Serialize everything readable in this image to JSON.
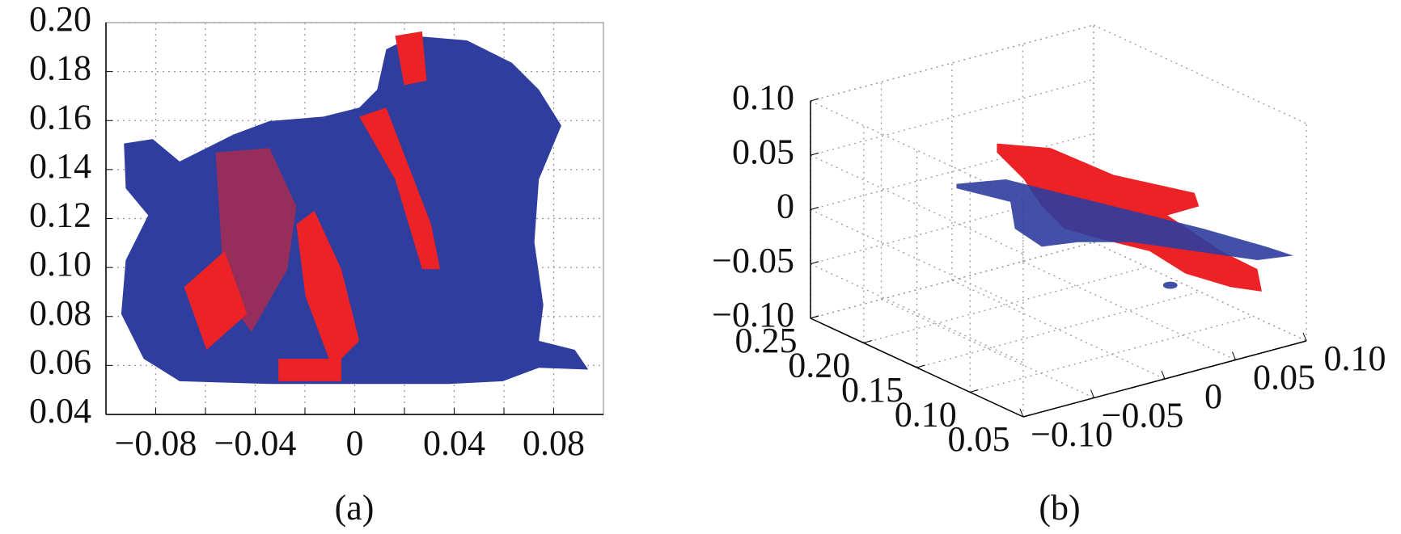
{
  "chart_data": [
    {
      "type": "scatter",
      "caption": "(a)",
      "point_colors": [
        "#2e3d9e",
        "#ec2227"
      ],
      "grid": true,
      "xlim": [
        -0.1,
        0.1
      ],
      "xticks": [
        {
          "value": -0.08,
          "label": "−0.08"
        },
        {
          "value": -0.06,
          "label": null
        },
        {
          "value": -0.04,
          "label": "−0.04"
        },
        {
          "value": -0.02,
          "label": null
        },
        0,
        {
          "value": 0.02,
          "label": null
        },
        0.04,
        {
          "value": 0.06,
          "label": null
        },
        0.08
      ],
      "ylim": [
        0.04,
        0.2
      ],
      "yticks": [
        0.04,
        0.06,
        0.08,
        {
          "value": 0.1,
          "label": "0.10"
        },
        0.12,
        0.14,
        0.16,
        0.18,
        {
          "value": 0.2,
          "label": "0.20"
        }
      ]
    },
    {
      "type": "scatter3d",
      "caption": "(b)",
      "point_colors": [
        "#2e3d9e",
        "#ec2227"
      ],
      "grid": true,
      "xlim": [
        -0.1,
        0.1
      ],
      "xticks": [
        {
          "value": -0.1,
          "label": "−0.10"
        },
        {
          "value": -0.05,
          "label": "−0.05"
        },
        0,
        0.05,
        {
          "value": 0.1,
          "label": "0.10"
        }
      ],
      "ylim": [
        0.05,
        0.25
      ],
      "yticks": [
        0.25,
        {
          "value": 0.2,
          "label": "0.20"
        },
        0.15,
        {
          "value": 0.1,
          "label": "0.10"
        },
        0.05
      ],
      "zlim": [
        -0.1,
        0.1
      ],
      "zticks": [
        {
          "value": 0.1,
          "label": "0.10"
        },
        0.05,
        0,
        {
          "value": -0.05,
          "label": "−0.05"
        },
        {
          "value": -0.1,
          "label": "−0.10"
        }
      ]
    }
  ]
}
